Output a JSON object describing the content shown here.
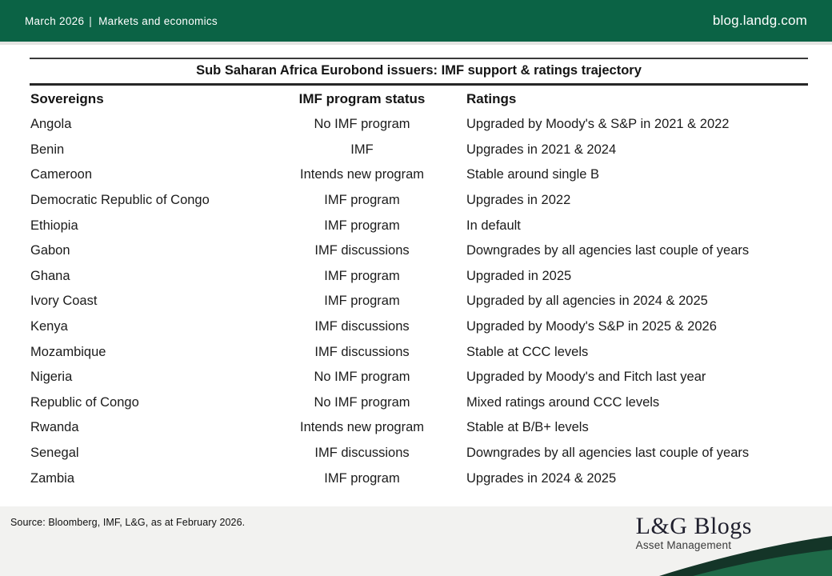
{
  "banner": {
    "date": "March 2026",
    "separator": "|",
    "section": "Markets and economics",
    "site": "blog.landg.com"
  },
  "table": {
    "title": "Sub Saharan Africa Eurobond issuers: IMF support & ratings trajectory",
    "columns": [
      "Sovereigns",
      "IMF program status",
      "Ratings"
    ],
    "rows": [
      {
        "sovereign": "Angola",
        "imf_status": "No IMF program",
        "rating": "Upgraded by Moody's & S&P in 2021 & 2022"
      },
      {
        "sovereign": "Benin",
        "imf_status": "IMF",
        "rating": "Upgrades in 2021 & 2024"
      },
      {
        "sovereign": "Cameroon",
        "imf_status": "Intends new program",
        "rating": "Stable around single B"
      },
      {
        "sovereign": "Democratic Republic of Congo",
        "imf_status": "IMF program",
        "rating": "Upgrades in 2022"
      },
      {
        "sovereign": "Ethiopia",
        "imf_status": "IMF program",
        "rating": "In default"
      },
      {
        "sovereign": "Gabon",
        "imf_status": "IMF discussions",
        "rating": "Downgrades by all agencies last couple of years"
      },
      {
        "sovereign": "Ghana",
        "imf_status": "IMF program",
        "rating": "Upgraded in 2025"
      },
      {
        "sovereign": "Ivory Coast",
        "imf_status": "IMF program",
        "rating": "Upgraded by all agencies in 2024 & 2025"
      },
      {
        "sovereign": "Kenya",
        "imf_status": "IMF discussions",
        "rating": "Upgraded by Moody's S&P in 2025 & 2026"
      },
      {
        "sovereign": "Mozambique",
        "imf_status": "IMF discussions",
        "rating": "Stable at CCC levels"
      },
      {
        "sovereign": "Nigeria",
        "imf_status": "No IMF program",
        "rating": "Upgraded by Moody's and Fitch last year"
      },
      {
        "sovereign": "Republic of Congo",
        "imf_status": "No IMF program",
        "rating": "Mixed ratings around CCC levels"
      },
      {
        "sovereign": "Rwanda",
        "imf_status": "Intends new program",
        "rating": "Stable at B/B+ levels"
      },
      {
        "sovereign": "Senegal",
        "imf_status": "IMF discussions",
        "rating": "Downgrades by all agencies last couple of years"
      },
      {
        "sovereign": "Zambia",
        "imf_status": "IMF program",
        "rating": "Upgrades in 2024 & 2025"
      }
    ]
  },
  "chart_data": {
    "type": "table",
    "title": "Sub Saharan Africa Eurobond issuers: IMF support & ratings trajectory",
    "columns": [
      "Sovereigns",
      "IMF program status",
      "Ratings"
    ],
    "rows": [
      [
        "Angola",
        "No IMF program",
        "Upgraded by Moody's & S&P in 2021 & 2022"
      ],
      [
        "Benin",
        "IMF",
        "Upgrades in 2021 & 2024"
      ],
      [
        "Cameroon",
        "Intends new program",
        "Stable around single B"
      ],
      [
        "Democratic Republic of Congo",
        "IMF program",
        "Upgrades in 2022"
      ],
      [
        "Ethiopia",
        "IMF program",
        "In default"
      ],
      [
        "Gabon",
        "IMF discussions",
        "Downgrades by all agencies last couple of years"
      ],
      [
        "Ghana",
        "IMF program",
        "Upgraded in 2025"
      ],
      [
        "Ivory Coast",
        "IMF program",
        "Upgraded by all agencies in 2024 & 2025"
      ],
      [
        "Kenya",
        "IMF discussions",
        "Upgraded by Moody's S&P in 2025 & 2026"
      ],
      [
        "Mozambique",
        "IMF discussions",
        "Stable at CCC levels"
      ],
      [
        "Nigeria",
        "No IMF program",
        "Upgraded by Moody's and Fitch last year"
      ],
      [
        "Republic of Congo",
        "No IMF program",
        "Mixed ratings around CCC levels"
      ],
      [
        "Rwanda",
        "Intends new program",
        "Stable at B/B+ levels"
      ],
      [
        "Senegal",
        "IMF discussions",
        "Downgrades by all agencies last couple of years"
      ],
      [
        "Zambia",
        "IMF program",
        "Upgrades in 2024 & 2025"
      ]
    ]
  },
  "footer": {
    "source": "Source: Bloomberg, IMF, L&G, as at February 2026.",
    "logo_title": "L&G Blogs",
    "logo_subtitle": "Asset Management"
  },
  "colors": {
    "brand_green": "#0b6345",
    "swoosh_dark": "#143528",
    "swoosh_green": "#1e6a48",
    "footer_bg": "#f2f2f0"
  }
}
